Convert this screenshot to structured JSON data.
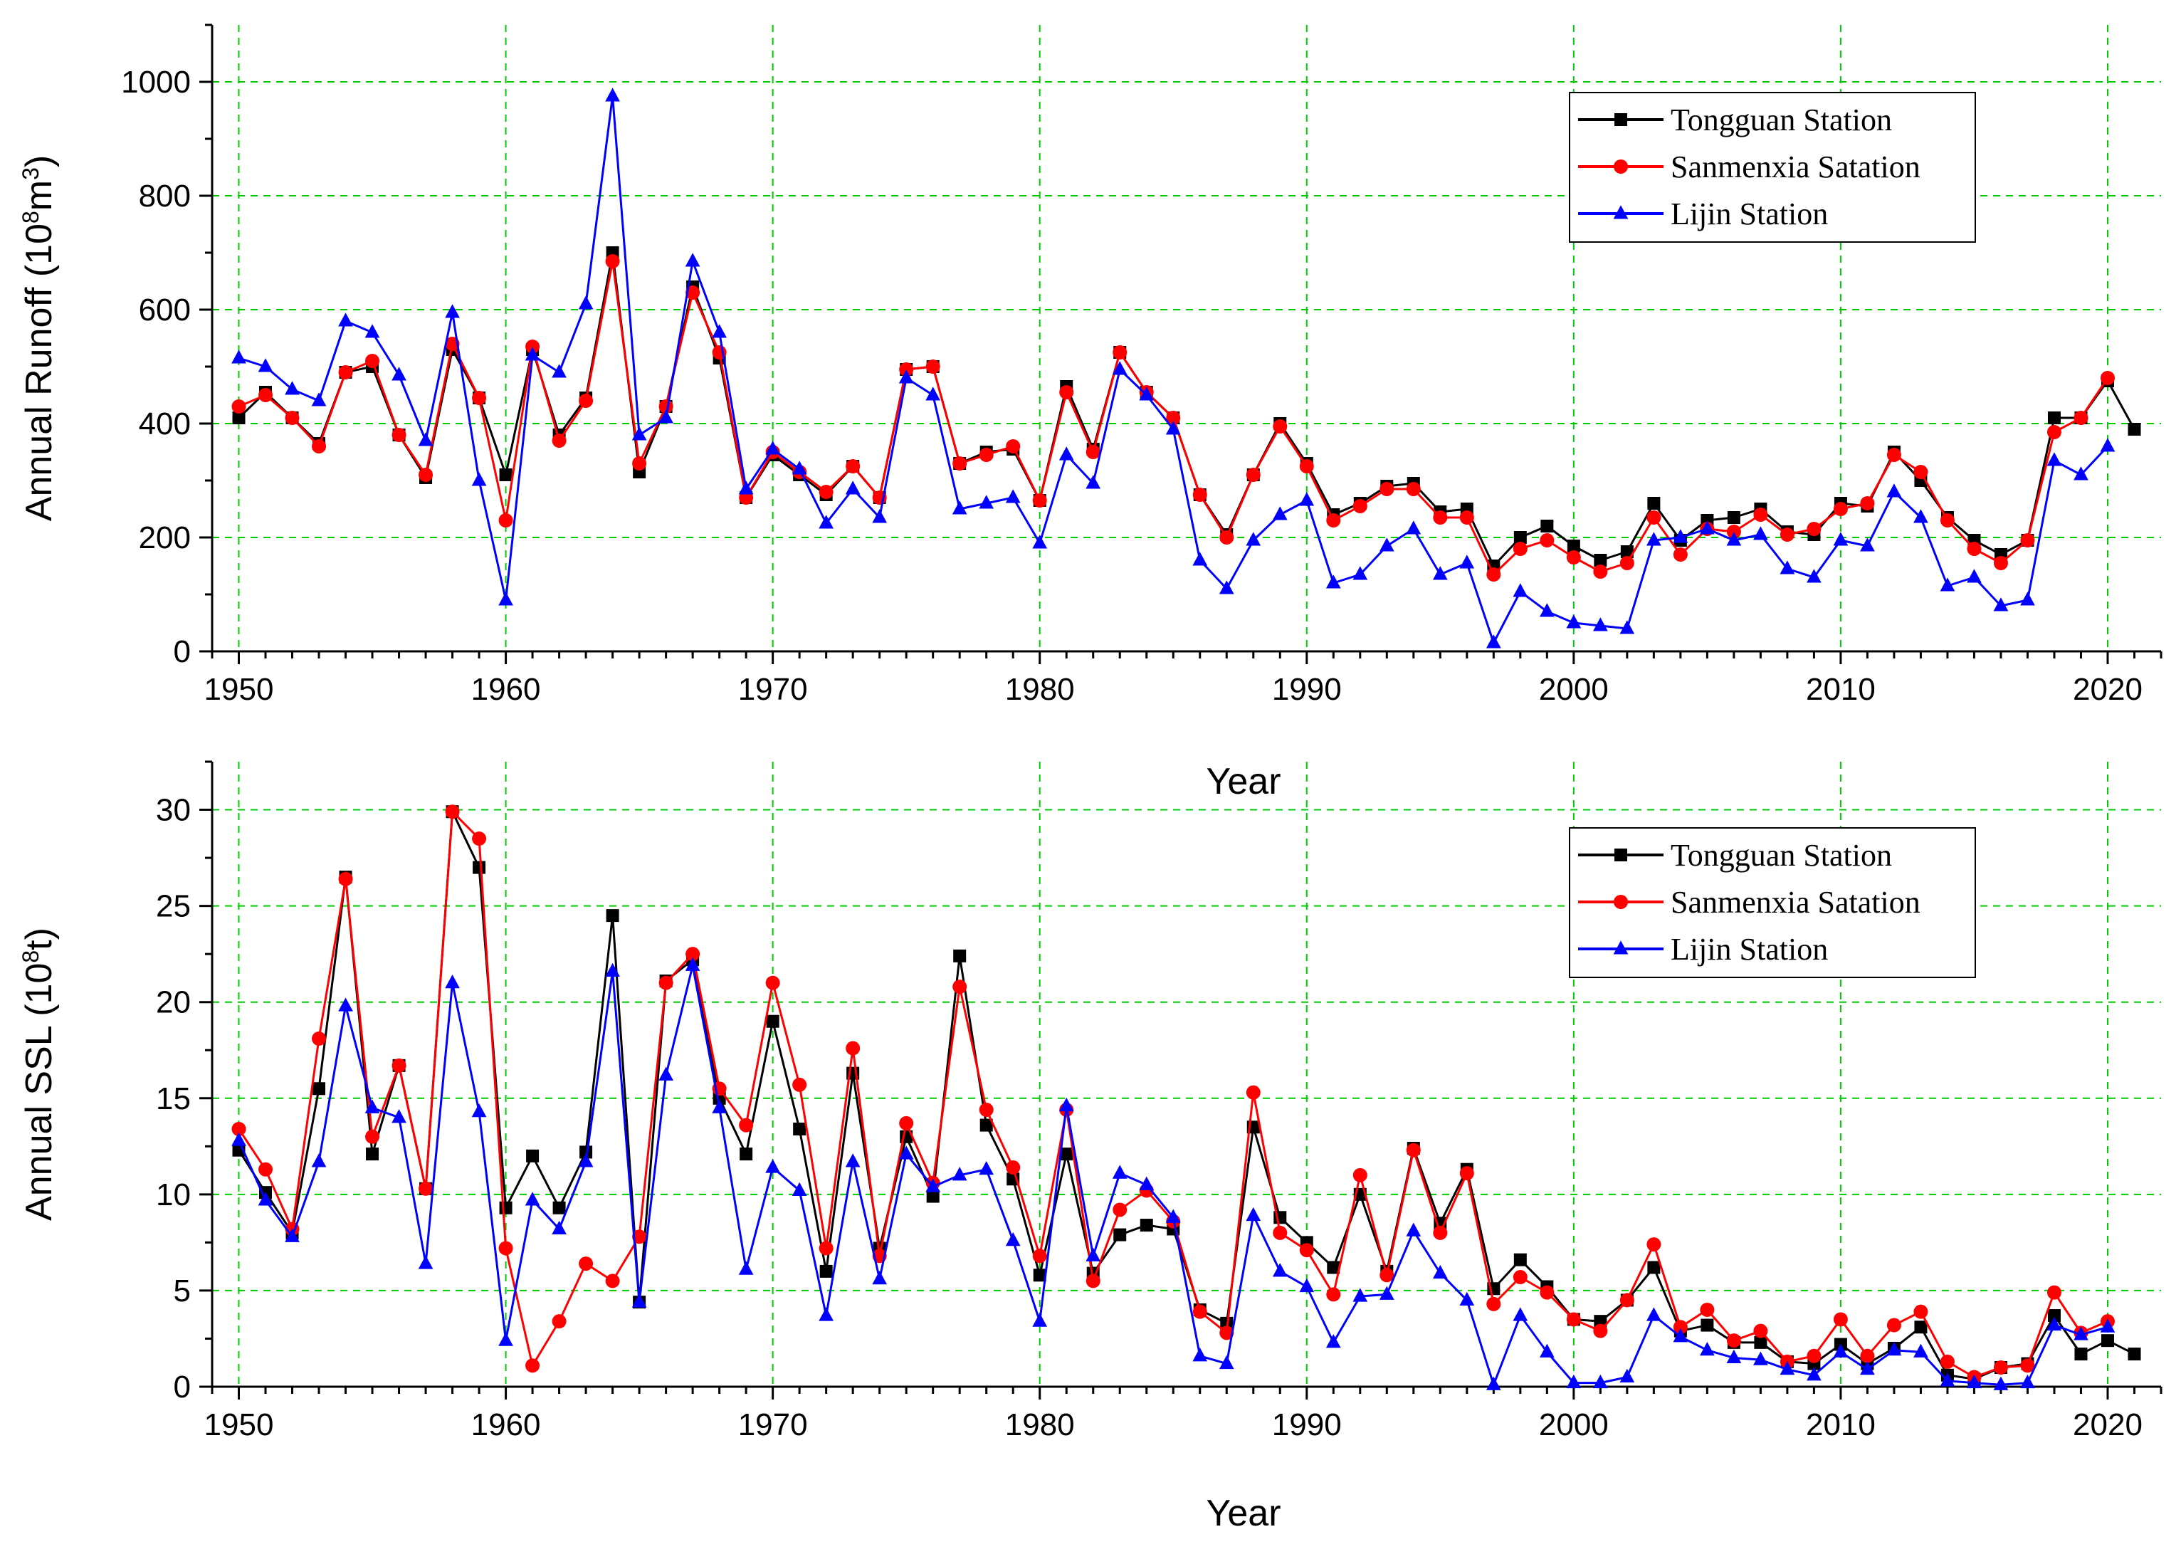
{
  "chart_data": [
    {
      "type": "line",
      "ylabel": "Annual Runoff (10",
      "ylabel_sup": "8",
      "ylabel_unit": "m",
      "ylabel_sup2": "3",
      "ylabel_end": ")",
      "xlabel": "Year",
      "xlim": [
        1949,
        2022
      ],
      "ylim": [
        0,
        1100
      ],
      "xticks": [
        1950,
        1960,
        1970,
        1980,
        1990,
        2000,
        2010,
        2020
      ],
      "yticks": [
        0,
        200,
        400,
        600,
        800,
        1000
      ],
      "legend_position": "top-right",
      "series": [
        {
          "name": "Tongguan Station",
          "color": "#000000",
          "marker": "square",
          "x": [
            1950,
            1951,
            1952,
            1953,
            1954,
            1955,
            1956,
            1957,
            1958,
            1959,
            1960,
            1961,
            1962,
            1963,
            1964,
            1965,
            1966,
            1967,
            1968,
            1969,
            1970,
            1971,
            1972,
            1973,
            1974,
            1975,
            1976,
            1977,
            1978,
            1979,
            1980,
            1981,
            1982,
            1983,
            1984,
            1985,
            1986,
            1987,
            1988,
            1989,
            1990,
            1991,
            1992,
            1993,
            1994,
            1995,
            1996,
            1997,
            1998,
            1999,
            2000,
            2001,
            2002,
            2003,
            2004,
            2005,
            2006,
            2007,
            2008,
            2009,
            2010,
            2011,
            2012,
            2013,
            2014,
            2015,
            2016,
            2017,
            2018,
            2019,
            2020,
            2021
          ],
          "values": [
            410,
            455,
            410,
            365,
            490,
            500,
            380,
            305,
            530,
            445,
            310,
            530,
            380,
            445,
            700,
            315,
            430,
            640,
            515,
            270,
            345,
            310,
            275,
            325,
            270,
            495,
            500,
            330,
            350,
            355,
            265,
            465,
            355,
            525,
            455,
            410,
            275,
            205,
            310,
            400,
            330,
            240,
            260,
            290,
            295,
            245,
            250,
            150,
            200,
            220,
            185,
            160,
            175,
            260,
            195,
            230,
            235,
            250,
            210,
            205,
            260,
            255,
            350,
            300,
            235,
            195,
            170,
            195,
            410,
            410,
            475,
            390
          ]
        },
        {
          "name": "Sanmenxia Satation",
          "color": "#ff0000",
          "marker": "circle",
          "x": [
            1950,
            1951,
            1952,
            1953,
            1954,
            1955,
            1956,
            1957,
            1958,
            1959,
            1960,
            1961,
            1962,
            1963,
            1964,
            1965,
            1966,
            1967,
            1968,
            1969,
            1970,
            1971,
            1972,
            1973,
            1974,
            1975,
            1976,
            1977,
            1978,
            1979,
            1980,
            1981,
            1982,
            1983,
            1984,
            1985,
            1986,
            1987,
            1988,
            1989,
            1990,
            1991,
            1992,
            1993,
            1994,
            1995,
            1996,
            1997,
            1998,
            1999,
            2000,
            2001,
            2002,
            2003,
            2004,
            2005,
            2006,
            2007,
            2008,
            2009,
            2010,
            2011,
            2012,
            2013,
            2014,
            2015,
            2016,
            2017,
            2018,
            2019,
            2020
          ],
          "values": [
            430,
            450,
            410,
            360,
            490,
            510,
            380,
            310,
            540,
            445,
            230,
            535,
            370,
            440,
            685,
            330,
            430,
            630,
            525,
            270,
            350,
            315,
            280,
            325,
            270,
            495,
            500,
            330,
            345,
            360,
            265,
            455,
            350,
            525,
            455,
            410,
            275,
            200,
            310,
            395,
            325,
            230,
            255,
            285,
            285,
            235,
            235,
            135,
            180,
            195,
            165,
            140,
            155,
            235,
            170,
            215,
            210,
            240,
            205,
            215,
            250,
            260,
            345,
            315,
            230,
            180,
            155,
            195,
            385,
            410,
            480
          ]
        },
        {
          "name": "Lijin Station",
          "color": "#0000ff",
          "marker": "triangle",
          "x": [
            1950,
            1951,
            1952,
            1953,
            1954,
            1955,
            1956,
            1957,
            1958,
            1959,
            1960,
            1961,
            1962,
            1963,
            1964,
            1965,
            1966,
            1967,
            1968,
            1969,
            1970,
            1971,
            1972,
            1973,
            1974,
            1975,
            1976,
            1977,
            1978,
            1979,
            1980,
            1981,
            1982,
            1983,
            1984,
            1985,
            1986,
            1987,
            1988,
            1989,
            1990,
            1991,
            1992,
            1993,
            1994,
            1995,
            1996,
            1997,
            1998,
            1999,
            2000,
            2001,
            2002,
            2003,
            2004,
            2005,
            2006,
            2007,
            2008,
            2009,
            2010,
            2011,
            2012,
            2013,
            2014,
            2015,
            2016,
            2017,
            2018,
            2019,
            2020
          ],
          "values": [
            515,
            500,
            460,
            440,
            580,
            560,
            485,
            370,
            595,
            300,
            90,
            520,
            490,
            610,
            975,
            380,
            410,
            685,
            560,
            285,
            355,
            320,
            225,
            285,
            235,
            480,
            450,
            250,
            260,
            270,
            190,
            345,
            295,
            495,
            450,
            390,
            160,
            110,
            195,
            240,
            265,
            120,
            135,
            185,
            215,
            135,
            155,
            15,
            105,
            70,
            50,
            45,
            40,
            195,
            200,
            215,
            195,
            205,
            145,
            130,
            195,
            185,
            280,
            235,
            115,
            130,
            80,
            90,
            335,
            310,
            360
          ]
        }
      ]
    },
    {
      "type": "line",
      "ylabel": "Annual SSL (10",
      "ylabel_sup": "8",
      "ylabel_unit": "t",
      "ylabel_end": ")",
      "xlabel": "Year",
      "xlim": [
        1949,
        2022
      ],
      "ylim": [
        0,
        32.5
      ],
      "xticks": [
        1950,
        1960,
        1970,
        1980,
        1990,
        2000,
        2010,
        2020
      ],
      "yticks": [
        0,
        5,
        10,
        15,
        20,
        25,
        30
      ],
      "legend_position": "top-right",
      "series": [
        {
          "name": "Tongguan Station",
          "color": "#000000",
          "marker": "square",
          "x": [
            1950,
            1951,
            1952,
            1953,
            1954,
            1955,
            1956,
            1957,
            1958,
            1959,
            1960,
            1961,
            1962,
            1963,
            1964,
            1965,
            1966,
            1967,
            1968,
            1969,
            1970,
            1971,
            1972,
            1973,
            1974,
            1975,
            1976,
            1977,
            1978,
            1979,
            1980,
            1981,
            1982,
            1983,
            1984,
            1985,
            1986,
            1987,
            1988,
            1989,
            1990,
            1991,
            1992,
            1993,
            1994,
            1995,
            1996,
            1997,
            1998,
            1999,
            2000,
            2001,
            2002,
            2003,
            2004,
            2005,
            2006,
            2007,
            2008,
            2009,
            2010,
            2011,
            2012,
            2013,
            2014,
            2015,
            2016,
            2017,
            2018,
            2019,
            2020,
            2021
          ],
          "values": [
            12.3,
            10.1,
            8.0,
            15.5,
            26.5,
            12.1,
            16.7,
            10.3,
            29.9,
            27.0,
            9.3,
            12.0,
            9.3,
            12.2,
            24.5,
            4.4,
            21.1,
            22.2,
            15.0,
            12.1,
            19.0,
            13.4,
            6.0,
            16.3,
            7.2,
            13.0,
            9.9,
            22.4,
            13.6,
            10.8,
            5.8,
            12.1,
            5.9,
            7.9,
            8.4,
            8.2,
            4.0,
            3.3,
            13.5,
            8.8,
            7.5,
            6.2,
            10.0,
            6.0,
            12.4,
            8.5,
            11.3,
            5.1,
            6.6,
            5.2,
            3.5,
            3.4,
            4.5,
            6.2,
            2.9,
            3.2,
            2.3,
            2.3,
            1.3,
            1.2,
            2.2,
            1.2,
            2.0,
            3.1,
            0.6,
            0.4,
            1.0,
            1.2,
            3.7,
            1.7,
            2.4,
            1.7
          ]
        },
        {
          "name": "Sanmenxia Satation",
          "color": "#ff0000",
          "marker": "circle",
          "x": [
            1950,
            1951,
            1952,
            1953,
            1954,
            1955,
            1956,
            1957,
            1958,
            1959,
            1960,
            1961,
            1962,
            1963,
            1964,
            1965,
            1966,
            1967,
            1968,
            1969,
            1970,
            1971,
            1972,
            1973,
            1974,
            1975,
            1976,
            1977,
            1978,
            1979,
            1980,
            1981,
            1982,
            1983,
            1984,
            1985,
            1986,
            1987,
            1988,
            1989,
            1990,
            1991,
            1992,
            1993,
            1994,
            1995,
            1996,
            1997,
            1998,
            1999,
            2000,
            2001,
            2002,
            2003,
            2004,
            2005,
            2006,
            2007,
            2008,
            2009,
            2010,
            2011,
            2012,
            2013,
            2014,
            2015,
            2016,
            2017,
            2018,
            2019,
            2020
          ],
          "values": [
            13.4,
            11.3,
            8.2,
            18.1,
            26.4,
            13.0,
            16.7,
            10.3,
            29.9,
            28.5,
            7.2,
            1.1,
            3.4,
            6.4,
            5.5,
            7.8,
            21.0,
            22.5,
            15.5,
            13.6,
            21.0,
            15.7,
            7.2,
            17.6,
            6.8,
            13.7,
            10.6,
            20.8,
            14.4,
            11.4,
            6.8,
            14.4,
            5.5,
            9.2,
            10.2,
            8.6,
            3.9,
            2.8,
            15.3,
            8.0,
            7.1,
            4.8,
            11.0,
            5.8,
            12.3,
            8.0,
            11.1,
            4.3,
            5.7,
            4.9,
            3.5,
            2.9,
            4.5,
            7.4,
            3.1,
            4.0,
            2.4,
            2.9,
            1.3,
            1.6,
            3.5,
            1.6,
            3.2,
            3.9,
            1.3,
            0.5,
            1.0,
            1.1,
            4.9,
            2.8,
            3.4
          ]
        },
        {
          "name": "Lijin Station",
          "color": "#0000ff",
          "marker": "triangle",
          "x": [
            1950,
            1951,
            1952,
            1953,
            1954,
            1955,
            1956,
            1957,
            1958,
            1959,
            1960,
            1961,
            1962,
            1963,
            1964,
            1965,
            1966,
            1967,
            1968,
            1969,
            1970,
            1971,
            1972,
            1973,
            1974,
            1975,
            1976,
            1977,
            1978,
            1979,
            1980,
            1981,
            1982,
            1983,
            1984,
            1985,
            1986,
            1987,
            1988,
            1989,
            1990,
            1991,
            1992,
            1993,
            1994,
            1995,
            1996,
            1997,
            1998,
            1999,
            2000,
            2001,
            2002,
            2003,
            2004,
            2005,
            2006,
            2007,
            2008,
            2009,
            2010,
            2011,
            2012,
            2013,
            2014,
            2015,
            2016,
            2017,
            2018,
            2019,
            2020
          ],
          "values": [
            12.8,
            9.7,
            7.8,
            11.7,
            19.8,
            14.5,
            14.0,
            6.4,
            21.0,
            14.3,
            2.4,
            9.7,
            8.2,
            11.7,
            21.6,
            4.4,
            16.2,
            21.9,
            14.5,
            6.1,
            11.4,
            10.2,
            3.7,
            11.7,
            5.6,
            12.1,
            10.4,
            11.0,
            11.3,
            7.6,
            3.4,
            14.6,
            6.8,
            11.1,
            10.5,
            8.8,
            1.6,
            1.2,
            8.9,
            6.0,
            5.2,
            2.3,
            4.7,
            4.8,
            8.1,
            5.9,
            4.5,
            0.1,
            3.7,
            1.8,
            0.2,
            0.2,
            0.5,
            3.7,
            2.6,
            1.9,
            1.5,
            1.4,
            0.9,
            0.6,
            1.8,
            0.9,
            1.9,
            1.8,
            0.3,
            0.2,
            0.1,
            0.2,
            3.2,
            2.7,
            3.1
          ]
        }
      ]
    }
  ]
}
